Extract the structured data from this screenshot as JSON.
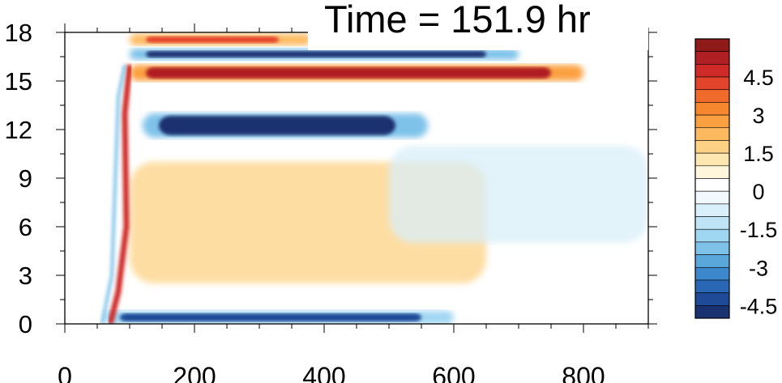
{
  "chart_data": {
    "type": "heatmap",
    "title": "Time = 151.9 hr",
    "xlabel": "",
    "ylabel": "",
    "xlim": [
      0,
      900
    ],
    "ylim": [
      0,
      18
    ],
    "x_ticks": [
      "0",
      "200",
      "400",
      "600",
      "800"
    ],
    "y_ticks": [
      "0",
      "3",
      "6",
      "9",
      "12",
      "15",
      "18"
    ],
    "colorbar": {
      "tick_labels": [
        "4.5",
        "3",
        "1.5",
        "0",
        "-1.5",
        "-3",
        "-4.5"
      ],
      "levels_top_to_bottom": [
        {
          "value": 5.5,
          "color": "#8e1a1a"
        },
        {
          "value": 5.0,
          "color": "#b01f24"
        },
        {
          "value": 4.5,
          "color": "#cf2a27"
        },
        {
          "value": 4.0,
          "color": "#e2432b"
        },
        {
          "value": 3.5,
          "color": "#f06a2c"
        },
        {
          "value": 3.0,
          "color": "#f7872f"
        },
        {
          "value": 2.5,
          "color": "#fba040"
        },
        {
          "value": 2.0,
          "color": "#fdb95f"
        },
        {
          "value": 1.5,
          "color": "#fed284"
        },
        {
          "value": 1.0,
          "color": "#fee6b0"
        },
        {
          "value": 0.5,
          "color": "#fff6dc"
        },
        {
          "value": 0.0,
          "color": "#ffffff"
        },
        {
          "value": -0.5,
          "color": "#f1f9fd"
        },
        {
          "value": -1.0,
          "color": "#d9eff9"
        },
        {
          "value": -1.5,
          "color": "#bfe4f5"
        },
        {
          "value": -2.0,
          "color": "#9fd6f2"
        },
        {
          "value": -2.5,
          "color": "#7ec2ea"
        },
        {
          "value": -3.0,
          "color": "#5aa7dc"
        },
        {
          "value": -3.5,
          "color": "#3d88cc"
        },
        {
          "value": -4.0,
          "color": "#2966b4"
        },
        {
          "value": -4.5,
          "color": "#1f4a96"
        },
        {
          "value": -5.0,
          "color": "#1a3270"
        }
      ]
    },
    "features": [
      {
        "name": "upper-red-band",
        "x": [
          100,
          800
        ],
        "y": [
          15.0,
          16.0
        ],
        "value": 5.0
      },
      {
        "name": "top-blue-band",
        "x": [
          100,
          700
        ],
        "y": [
          16.3,
          17.0
        ],
        "value": -5.0
      },
      {
        "name": "top-red-band",
        "x": [
          100,
          380
        ],
        "y": [
          17.2,
          17.9
        ],
        "value": 4.0
      },
      {
        "name": "middle-blue-band",
        "x": [
          120,
          560
        ],
        "y": [
          11.5,
          13.0
        ],
        "value": -5.0
      },
      {
        "name": "bottom-blue-band",
        "x": [
          60,
          600
        ],
        "y": [
          0.0,
          0.8
        ],
        "value": -4.5
      },
      {
        "name": "front-line",
        "x": [
          70,
          100
        ],
        "y": [
          0.0,
          16.0
        ],
        "value": 4.5
      },
      {
        "name": "warm-region",
        "x": [
          100,
          650
        ],
        "y": [
          2.5,
          10.0
        ],
        "value": 1.5
      },
      {
        "name": "cool-region",
        "x": [
          500,
          900
        ],
        "y": [
          5.0,
          11.0
        ],
        "value": -1.0
      }
    ]
  }
}
